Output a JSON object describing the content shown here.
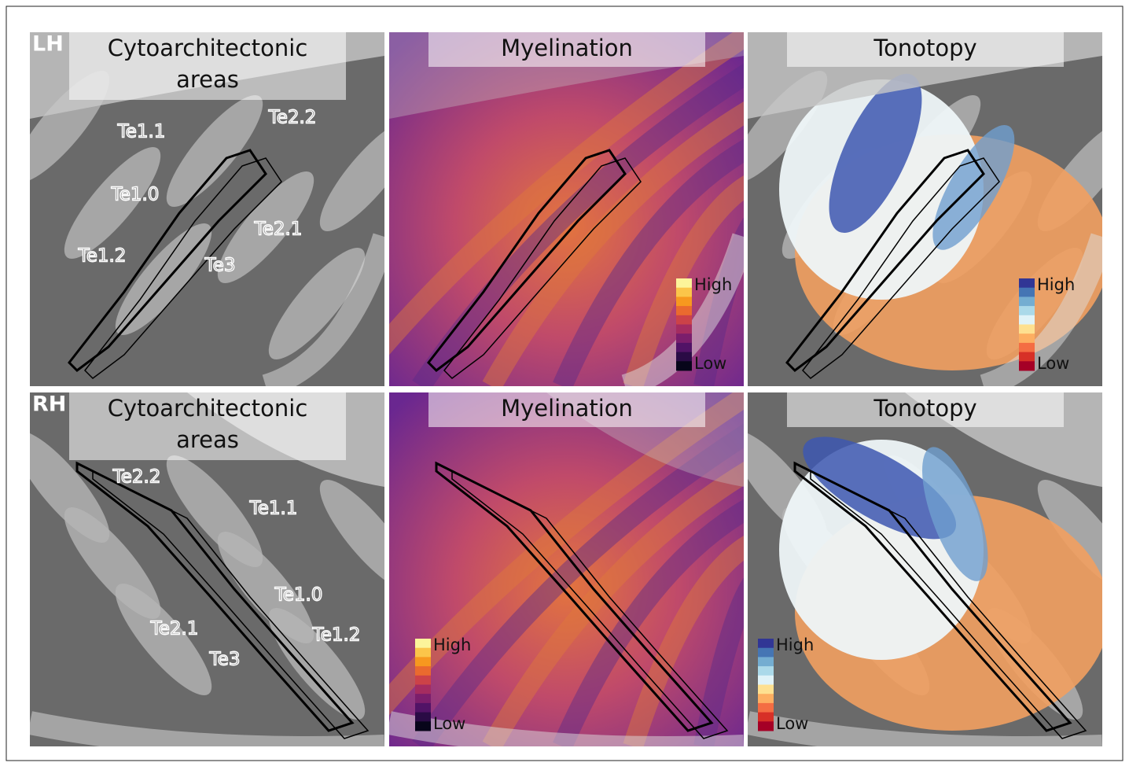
{
  "rows": [
    {
      "hemisphere": "LH",
      "panels": [
        {
          "title": "Cytoarchitectonic areas",
          "areas": [
            "Te1.1",
            "Te2.2",
            "Te1.0",
            "Te2.1",
            "Te1.2",
            "Te3"
          ]
        },
        {
          "title": "Myelination",
          "colorbar": {
            "high": "High",
            "low": "Low"
          }
        },
        {
          "title": "Tonotopy",
          "colorbar": {
            "high": "High",
            "low": "Low"
          }
        }
      ]
    },
    {
      "hemisphere": "RH",
      "panels": [
        {
          "title": "Cytoarchitectonic areas",
          "areas": [
            "Te2.2",
            "Te1.1",
            "Te1.0",
            "Te2.1",
            "Te1.2",
            "Te3"
          ]
        },
        {
          "title": "Myelination",
          "colorbar": {
            "high": "High",
            "low": "Low"
          }
        },
        {
          "title": "Tonotopy",
          "colorbar": {
            "high": "High",
            "low": "Low"
          }
        }
      ]
    }
  ],
  "colormaps": {
    "myelination": [
      "#fcf49a",
      "#fbc54a",
      "#f7981f",
      "#ea6a2e",
      "#cc4248",
      "#a52c60",
      "#7b1e6c",
      "#511366",
      "#2a0b45",
      "#07051a"
    ],
    "tonotopy": [
      "#313695",
      "#4575b4",
      "#74add1",
      "#abd9e9",
      "#e0f3f8",
      "#fee090",
      "#fdae61",
      "#f46d43",
      "#d73027",
      "#a50026"
    ]
  }
}
